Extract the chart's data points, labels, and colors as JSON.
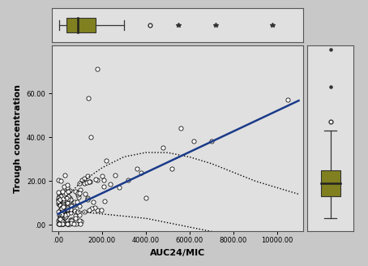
{
  "background_color": "#c8c8c8",
  "plot_bg_color": "#e0e0e0",
  "box_color": "#808020",
  "scatter_facecolor": "white",
  "scatter_edgecolor": "black",
  "line_color": "#1a3a8a",
  "conf_color": "black",
  "xlabel": "AUC24/MIC",
  "ylabel": "Trough concentration",
  "xticks": [
    0,
    2000,
    4000,
    6000,
    8000,
    10000
  ],
  "xtick_labels": [
    ".00",
    "2000.00",
    "4000.00",
    "6000.00",
    "8000.00",
    "10000.00"
  ],
  "yticks": [
    0,
    20,
    40,
    60
  ],
  "ytick_labels": [
    ".00",
    "20.00",
    "40.00",
    "60.00"
  ],
  "xlim": [
    -300,
    11200
  ],
  "ylim": [
    -3,
    82
  ],
  "seed": 42,
  "n_scatter": 190,
  "reg_slope": 0.0047,
  "reg_intercept": 5.0,
  "box_x_data": {
    "q1": 400,
    "q3": 1700,
    "median": 900,
    "whisker_low": 50,
    "whisker_high": 3000,
    "outliers_circle": [
      4200
    ],
    "outliers_star": [
      5500,
      7200,
      9800
    ]
  },
  "box_y_data": {
    "q1": 13,
    "q3": 25,
    "median": 19,
    "whisker_low": 3,
    "whisker_high": 43,
    "outliers_circle": [
      47
    ],
    "outliers_dot": [
      63,
      80
    ]
  },
  "ci_upper_pts_x": [
    0,
    1000,
    2000,
    3000,
    4000,
    5000,
    6000,
    7000,
    8000,
    9000,
    10000,
    11000
  ],
  "ci_upper_pts_y": [
    9,
    19,
    26,
    31,
    33,
    33,
    31,
    28,
    24,
    20,
    17,
    14
  ],
  "ci_lower_pts_x": [
    0,
    500,
    1000,
    2000,
    3000,
    4000,
    5000,
    6000,
    7000,
    8000,
    9000,
    10000,
    11000
  ],
  "ci_lower_pts_y": [
    4,
    6,
    6,
    5,
    4,
    3,
    1,
    -1,
    -3,
    -5,
    -7,
    -9,
    -11
  ]
}
